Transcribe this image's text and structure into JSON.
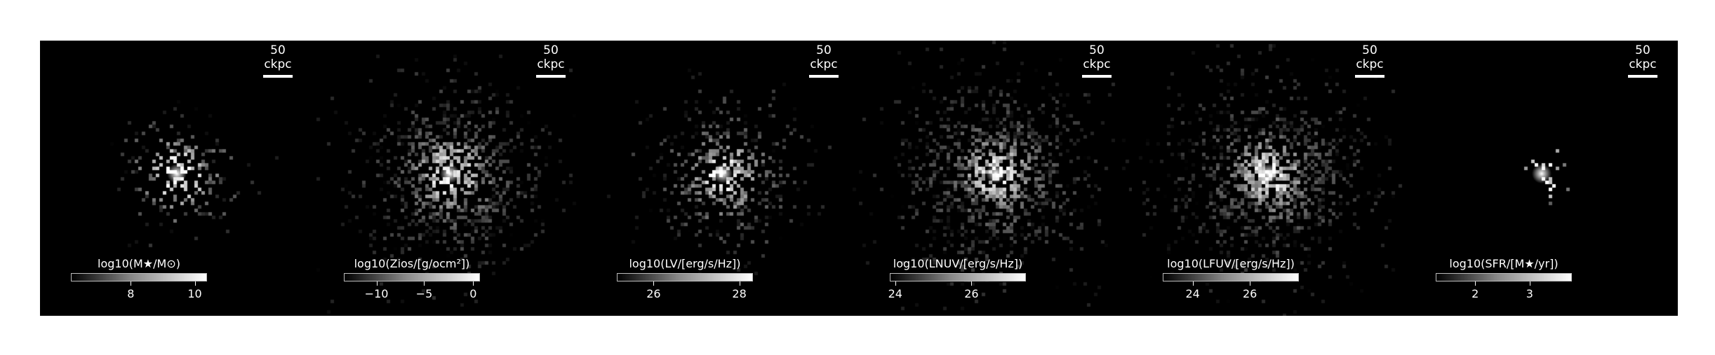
{
  "scale_text": "50 ckpc",
  "panels": [
    {
      "id": "stellar-mass",
      "colorbar_label": "log10(M★/M⊙)",
      "ticks": [
        {
          "label": "8",
          "pos": 0.44
        },
        {
          "label": "10",
          "pos": 0.91
        }
      ],
      "core": 0.9,
      "spread": 0.5,
      "density": 0.35
    },
    {
      "id": "metallicity",
      "colorbar_label": "log10(Zios/[g/ocm²])",
      "ticks": [
        {
          "label": "−10",
          "pos": 0.24
        },
        {
          "label": "−5",
          "pos": 0.59
        },
        {
          "label": "0",
          "pos": 0.95
        }
      ],
      "core": 0.9,
      "spread": 0.8,
      "density": 0.6
    },
    {
      "id": "luminosity-v",
      "colorbar_label": "log10(LV/[erg/s/Hz])",
      "ticks": [
        {
          "label": "26",
          "pos": 0.27
        },
        {
          "label": "28",
          "pos": 0.9
        }
      ],
      "core": 0.85,
      "spread": 0.65,
      "density": 0.5
    },
    {
      "id": "luminosity-nuv",
      "colorbar_label": "log10(LNUV/[erg/s/Hz])",
      "ticks": [
        {
          "label": "24",
          "pos": 0.04
        },
        {
          "label": "26",
          "pos": 0.6
        }
      ],
      "core": 0.8,
      "spread": 0.85,
      "density": 0.6
    },
    {
      "id": "luminosity-fuv",
      "colorbar_label": "log10(LFUV/[erg/s/Hz])",
      "ticks": [
        {
          "label": "24",
          "pos": 0.22
        },
        {
          "label": "26",
          "pos": 0.64
        }
      ],
      "core": 0.8,
      "spread": 0.85,
      "density": 0.6
    },
    {
      "id": "sfr",
      "colorbar_label": "log10(SFR/[M★/yr])",
      "ticks": [
        {
          "label": "2",
          "pos": 0.29
        },
        {
          "label": "3",
          "pos": 0.69
        }
      ],
      "core": 0.95,
      "spread": 0.25,
      "density": 0.12
    }
  ]
}
